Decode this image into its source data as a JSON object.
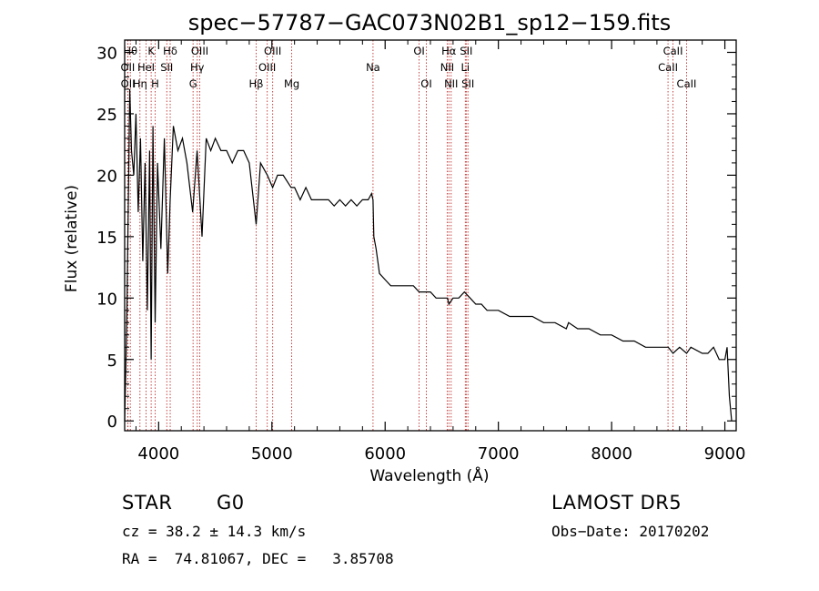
{
  "chart_data": {
    "type": "line",
    "title": "spec−57787−GAC073N02B1_sp12−159.fits",
    "xlabel": "Wavelength (Å)",
    "ylabel": "Flux (relative)",
    "xlim": [
      3700,
      9100
    ],
    "ylim": [
      -0.8,
      31
    ],
    "x_ticks": [
      4000,
      5000,
      6000,
      7000,
      8000,
      9000
    ],
    "y_ticks": [
      0,
      5,
      10,
      15,
      20,
      25,
      30
    ],
    "grid": false,
    "line_color": "#000000",
    "marker_color": "#c03030",
    "series": [
      {
        "x": [
          3700,
          3710,
          3720,
          3730,
          3745,
          3760,
          3780,
          3800,
          3820,
          3840,
          3860,
          3880,
          3900,
          3920,
          3934,
          3950,
          3969,
          3990,
          4020,
          4050,
          4080,
          4102,
          4130,
          4170,
          4210,
          4250,
          4300,
          4340,
          4383,
          4420,
          4460,
          4500,
          4550,
          4600,
          4650,
          4700,
          4750,
          4800,
          4861,
          4900,
          4960,
          5007,
          5050,
          5100,
          5170,
          5200,
          5250,
          5300,
          5350,
          5400,
          5450,
          5500,
          5550,
          5600,
          5650,
          5700,
          5750,
          5800,
          5850,
          5880,
          5893,
          5900,
          5920,
          5950,
          6000,
          6050,
          6100,
          6150,
          6200,
          6250,
          6300,
          6350,
          6400,
          6450,
          6500,
          6550,
          6563,
          6600,
          6650,
          6700,
          6750,
          6800,
          6850,
          6900,
          6950,
          7000,
          7100,
          7200,
          7300,
          7400,
          7500,
          7600,
          7620,
          7700,
          7800,
          7900,
          8000,
          8100,
          8200,
          8300,
          8400,
          8500,
          8542,
          8600,
          8662,
          8700,
          8800,
          8850,
          8900,
          8950,
          9000,
          9020,
          9040,
          9060
        ],
        "y": [
          0,
          4,
          9,
          16,
          27,
          22,
          20,
          25,
          17,
          23,
          13,
          21,
          9,
          22,
          5,
          24,
          8,
          21,
          14,
          23,
          12,
          18,
          24,
          22,
          23,
          21,
          17,
          22,
          15,
          23,
          22,
          23,
          22,
          22,
          21,
          22,
          22,
          21,
          16,
          21,
          20,
          19,
          20,
          20,
          19,
          19,
          18,
          19,
          18,
          18,
          18,
          18,
          17.5,
          18,
          17.5,
          18,
          17.5,
          18,
          18,
          18.5,
          18,
          15,
          14,
          12,
          11.5,
          11,
          11,
          11,
          11,
          11,
          10.5,
          10.5,
          10.5,
          10,
          10,
          10,
          9.5,
          10,
          10,
          10.5,
          10,
          9.5,
          9.5,
          9,
          9,
          9,
          8.5,
          8.5,
          8.5,
          8,
          8,
          7.5,
          8,
          7.5,
          7.5,
          7,
          7,
          6.5,
          6.5,
          6,
          6,
          6,
          5.5,
          6,
          5.5,
          6,
          5.5,
          5.5,
          6,
          5,
          5,
          6,
          2,
          0
        ]
      }
    ],
    "spectral_lines": [
      {
        "label": "OII",
        "x": 3727,
        "row": 1
      },
      {
        "label": "OII",
        "x": 3729,
        "row": 2
      },
      {
        "label": "Hθ",
        "x": 3750,
        "row": 0
      },
      {
        "label": "Hη",
        "x": 3835,
        "row": 2
      },
      {
        "label": "HeI",
        "x": 3889,
        "row": 1
      },
      {
        "label": "K",
        "x": 3934,
        "row": 0
      },
      {
        "label": "H",
        "x": 3969,
        "row": 2
      },
      {
        "label": "SII",
        "x": 4072,
        "row": 1
      },
      {
        "label": "Hδ",
        "x": 4102,
        "row": 0
      },
      {
        "label": "G",
        "x": 4304,
        "row": 2
      },
      {
        "label": "Hγ",
        "x": 4341,
        "row": 1
      },
      {
        "label": "OIII",
        "x": 4363,
        "row": 0
      },
      {
        "label": "Hβ",
        "x": 4861,
        "row": 2
      },
      {
        "label": "OIII",
        "x": 4959,
        "row": 1
      },
      {
        "label": "OIII",
        "x": 5007,
        "row": 0
      },
      {
        "label": "Mg",
        "x": 5175,
        "row": 2
      },
      {
        "label": "Na",
        "x": 5893,
        "row": 1
      },
      {
        "label": "OI",
        "x": 6300,
        "row": 0
      },
      {
        "label": "OI",
        "x": 6364,
        "row": 2
      },
      {
        "label": "NII",
        "x": 6548,
        "row": 1
      },
      {
        "label": "Hα",
        "x": 6563,
        "row": 0
      },
      {
        "label": "NII",
        "x": 6583,
        "row": 2
      },
      {
        "label": "Li",
        "x": 6708,
        "row": 1
      },
      {
        "label": "SII",
        "x": 6716,
        "row": 0
      },
      {
        "label": "SII",
        "x": 6731,
        "row": 2
      },
      {
        "label": "CaII",
        "x": 8498,
        "row": 1
      },
      {
        "label": "CaII",
        "x": 8542,
        "row": 0
      },
      {
        "label": "CaII",
        "x": 8662,
        "row": 2
      }
    ]
  },
  "info": {
    "object_class": "STAR",
    "subclass": "G0",
    "survey": "LAMOST DR5",
    "redshift_line": "cz = 38.2 ± 14.3 km/s",
    "obs_date": "Obs−Date: 20170202",
    "coords": "RA =  74.81067, DEC =   3.85708"
  }
}
